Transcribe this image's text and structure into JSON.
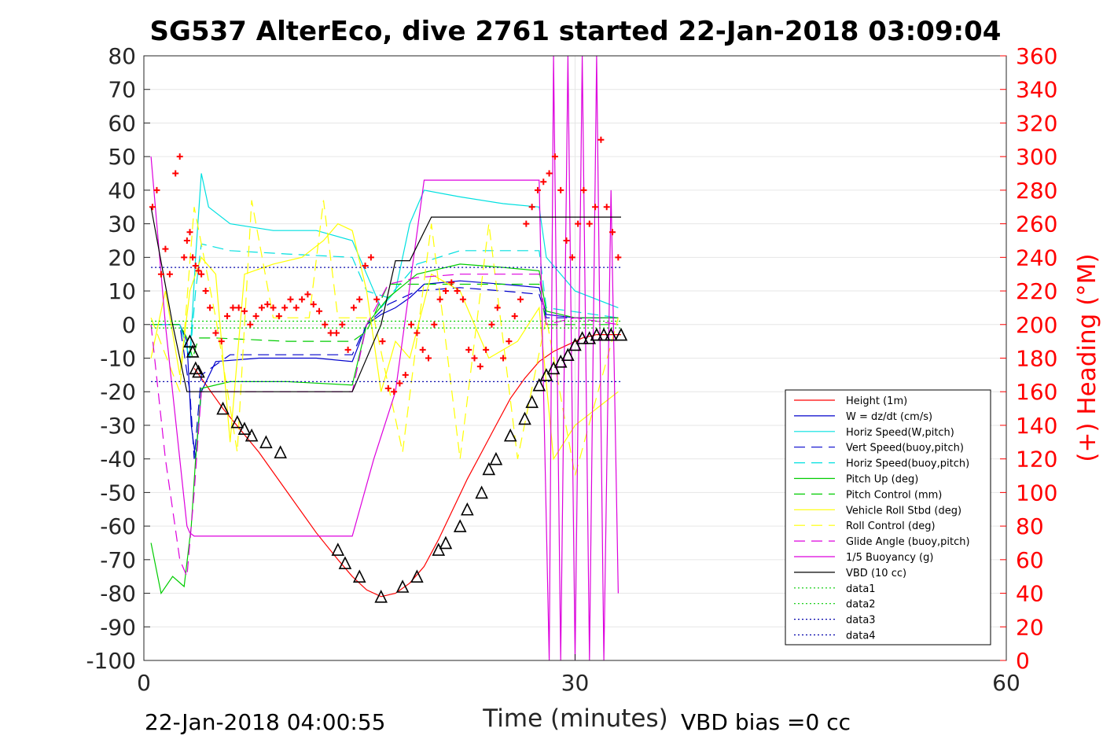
{
  "chart_data": {
    "type": "line",
    "title": "SG537 AlterEco, dive 2761 started 22-Jan-2018 03:09:04",
    "xlabel": "Time (minutes)",
    "ylabel": "",
    "y2label": "(+) Heading (°M)",
    "xlim": [
      0,
      60
    ],
    "ylim": [
      -100,
      80
    ],
    "y2lim": [
      0,
      360
    ],
    "xticks": [
      "0",
      "30",
      "60"
    ],
    "yticks": [
      "80",
      "70",
      "60",
      "50",
      "40",
      "30",
      "20",
      "10",
      "0",
      "-10",
      "-20",
      "-30",
      "-40",
      "-50",
      "-60",
      "-70",
      "-80",
      "-90",
      "-100"
    ],
    "y2ticks": [
      "360",
      "340",
      "320",
      "300",
      "280",
      "260",
      "240",
      "220",
      "200",
      "180",
      "160",
      "140",
      "120",
      "100",
      "80",
      "60",
      "40",
      "20",
      "0"
    ],
    "grid": true,
    "legend_position": "bottom-right",
    "footer_left": "22-Jan-2018 04:00:55",
    "footer_right": "VBD bias =0 cc",
    "series": [
      {
        "name": "Height (1m)",
        "color": "#ff0000",
        "style": "solid",
        "x": [
          3.5,
          5.5,
          8,
          10,
          12,
          13.5,
          14.5,
          15.5,
          16.5,
          17.5,
          18.5,
          19.5,
          20.5,
          21.5,
          22.5,
          23.5,
          24.5,
          25.5,
          26.5,
          27.5,
          28.5,
          29.5,
          30.5,
          31.5,
          32.5,
          33.2
        ],
        "y": [
          -13,
          -25,
          -38,
          -50,
          -62,
          -70,
          -75,
          -79,
          -81,
          -80,
          -77,
          -72,
          -64,
          -55,
          -46,
          -38,
          -30,
          -22,
          -16,
          -11,
          -8,
          -6,
          -4,
          -3,
          -3,
          -3
        ]
      },
      {
        "name": "W = dz/dt (cm/s)",
        "color": "#0000cc",
        "style": "solid",
        "x": [
          0.5,
          2.5,
          3.0,
          3.3,
          3.6,
          4.0,
          5,
          8,
          12,
          14.5,
          15.5,
          16.5,
          17.5,
          18.5,
          19.5,
          22,
          25,
          27.5,
          28,
          30,
          33
        ],
        "y": [
          0,
          0,
          -5,
          -30,
          -40,
          -20,
          -11,
          -10,
          -10,
          -11,
          0,
          3,
          5,
          8,
          12,
          13,
          12,
          11,
          3,
          2,
          2
        ]
      },
      {
        "name": "Horiz Speed(W,pitch)",
        "color": "#00e0e0",
        "style": "solid",
        "x": [
          0.5,
          2.5,
          3.2,
          3.6,
          4.0,
          4.5,
          6,
          9,
          12,
          14.5,
          15.5,
          16.5,
          17.5,
          18.5,
          19.5,
          22,
          25,
          27.5,
          28,
          30,
          33
        ],
        "y": [
          0,
          0,
          -10,
          20,
          45,
          35,
          30,
          28,
          28,
          25,
          15,
          5,
          10,
          30,
          40,
          38,
          36,
          35,
          20,
          10,
          5
        ]
      },
      {
        "name": "Vert Speed(buoy,pitch)",
        "color": "#0000cc",
        "style": "dash",
        "x": [
          0.5,
          2.5,
          3.2,
          3.5,
          4.0,
          6,
          10,
          14.5,
          15.5,
          17,
          19,
          22,
          25,
          27.5,
          28,
          33
        ],
        "y": [
          0,
          0,
          -20,
          -40,
          -15,
          -9,
          -9,
          -9,
          0,
          6,
          10,
          11,
          10,
          9,
          2,
          2
        ]
      },
      {
        "name": "Horiz Speed(buoy,pitch)",
        "color": "#00e0e0",
        "style": "dash",
        "x": [
          0.5,
          2.5,
          3.2,
          3.6,
          4.0,
          6,
          10,
          14.5,
          15.5,
          17,
          19,
          22,
          25,
          27.5,
          28,
          33
        ],
        "y": [
          0,
          0,
          -10,
          10,
          24,
          22,
          21,
          20,
          10,
          8,
          18,
          22,
          22,
          22,
          5,
          2
        ]
      },
      {
        "name": "Pitch Up (deg)",
        "color": "#00cc00",
        "style": "solid",
        "x": [
          0.5,
          1.2,
          2.0,
          2.8,
          3.3,
          3.6,
          4.0,
          6,
          10,
          14.5,
          15.5,
          17,
          19,
          22,
          25,
          27.5,
          28,
          30,
          33
        ],
        "y": [
          -65,
          -80,
          -75,
          -78,
          -60,
          -40,
          -19,
          -17,
          -17,
          -18,
          0,
          8,
          15,
          18,
          17,
          16,
          4,
          2,
          2
        ]
      },
      {
        "name": "Pitch Control (mm)",
        "color": "#00cc00",
        "style": "dash",
        "x": [
          0.5,
          2.5,
          3.0,
          3.4,
          3.8,
          5,
          10,
          14.5,
          15.5,
          17,
          19,
          22,
          25,
          27.5,
          28,
          33
        ],
        "y": [
          0,
          0,
          -4,
          -10,
          -4,
          -4,
          -5,
          -5,
          -2,
          12,
          12,
          12,
          12,
          12,
          0,
          0
        ]
      },
      {
        "name": "Vehicle Roll Stbd (deg)",
        "color": "#ffff00",
        "style": "solid",
        "x": [
          0.5,
          1.5,
          2.5,
          3.2,
          4.0,
          5.0,
          6.0,
          6.5,
          7.0,
          9.0,
          11.0,
          12.5,
          13.5,
          14.5,
          15.5,
          16.5,
          17.5,
          18.5,
          20.0,
          22.0,
          24.0,
          26.0,
          27.5,
          28.5,
          30.0,
          33.0
        ],
        "y": [
          -10,
          10,
          -15,
          10,
          20,
          15,
          -35,
          -10,
          15,
          18,
          20,
          25,
          30,
          28,
          10,
          -20,
          -5,
          -10,
          15,
          10,
          -10,
          -5,
          5,
          -40,
          -30,
          -20
        ]
      },
      {
        "name": "Roll Control (deg)",
        "color": "#ffff00",
        "style": "dash",
        "x": [
          0.5,
          2.5,
          3.5,
          5,
          6.5,
          7.5,
          9,
          11.5,
          12.5,
          13.5,
          14.5,
          16,
          18,
          20,
          22,
          24,
          26,
          28,
          30,
          33
        ],
        "y": [
          2,
          -20,
          35,
          2,
          -38,
          37,
          2,
          2,
          37,
          2,
          2,
          2,
          -38,
          30,
          -40,
          30,
          -40,
          2,
          -45,
          2
        ]
      },
      {
        "name": "Glide Angle (buoy,pitch)",
        "color": "#dd00dd",
        "style": "dash",
        "x": [
          0.5,
          1.5,
          2.5,
          3.0,
          3.5,
          4.0,
          6,
          10,
          14.5,
          15.5,
          17,
          19,
          22,
          25,
          27.5,
          28,
          30,
          33
        ],
        "y": [
          0,
          -40,
          -70,
          -75,
          -50,
          -20,
          -20,
          -20,
          -20,
          0,
          12,
          14,
          15,
          15,
          15,
          0,
          2,
          0
        ]
      },
      {
        "name": "1/5 Buoyancy (g)",
        "color": "#dd00dd",
        "style": "solid",
        "x": [
          0.5,
          1.5,
          3.0,
          3.2,
          3.5,
          5,
          10,
          14.5,
          16,
          17.5,
          19.5,
          22,
          25,
          27.5,
          28.2,
          28.5,
          29,
          29.5,
          30,
          30.5,
          31,
          31.5,
          32,
          32.5,
          33
        ],
        "y": [
          50,
          0,
          -60,
          -62,
          -63,
          -63,
          -63,
          -63,
          -40,
          -20,
          43,
          43,
          43,
          43,
          -100,
          80,
          -100,
          80,
          -100,
          80,
          -100,
          80,
          -100,
          40,
          -80
        ]
      },
      {
        "name": "VBD (10 cc)",
        "color": "#000000",
        "style": "solid",
        "x": [
          0.5,
          2.0,
          3.0,
          4.0,
          6,
          10,
          14.5,
          16.5,
          17.5,
          18.5,
          20.0,
          22,
          25,
          27.5,
          33.2
        ],
        "y": [
          35,
          0,
          -20,
          -20,
          -20,
          -20,
          -20,
          0,
          19,
          19,
          32,
          32,
          32,
          32,
          32
        ]
      },
      {
        "name": "data1",
        "color": "#00cc00",
        "style": "dot",
        "x": [
          0.5,
          33.2
        ],
        "y": [
          1,
          1
        ]
      },
      {
        "name": "data2",
        "color": "#00cc00",
        "style": "dot",
        "x": [
          0.5,
          33.2
        ],
        "y": [
          -1,
          -1
        ]
      },
      {
        "name": "data3",
        "color": "#0000aa",
        "style": "dot",
        "x": [
          0.5,
          33.2
        ],
        "y": [
          17,
          17
        ]
      },
      {
        "name": "data4",
        "color": "#0000aa",
        "style": "dot",
        "x": [
          0.5,
          33.2
        ],
        "y": [
          -17,
          -17
        ]
      }
    ],
    "heading_points": {
      "color": "#ff0000",
      "axis": "right",
      "x": [
        0.6,
        0.9,
        1.2,
        1.5,
        1.8,
        2.2,
        2.5,
        2.8,
        3.0,
        3.2,
        3.4,
        3.6,
        3.8,
        4.0,
        4.3,
        4.6,
        5.0,
        5.4,
        5.8,
        6.2,
        6.6,
        7.0,
        7.4,
        7.8,
        8.2,
        8.6,
        9.0,
        9.4,
        9.8,
        10.2,
        10.6,
        11.0,
        11.4,
        11.8,
        12.2,
        12.6,
        13.0,
        13.4,
        13.8,
        14.2,
        14.6,
        15.0,
        15.4,
        15.8,
        16.2,
        16.6,
        17.0,
        17.4,
        17.8,
        18.2,
        18.6,
        19.0,
        19.4,
        19.8,
        20.2,
        20.6,
        21.0,
        21.4,
        21.8,
        22.2,
        22.6,
        23.0,
        23.4,
        23.8,
        24.2,
        24.6,
        25.0,
        25.4,
        25.8,
        26.2,
        26.6,
        27.0,
        27.4,
        27.8,
        28.2,
        28.6,
        29.0,
        29.4,
        29.8,
        30.2,
        30.6,
        31.0,
        31.4,
        31.8,
        32.2,
        32.6,
        33.0
      ],
      "y": [
        270,
        280,
        230,
        245,
        230,
        290,
        300,
        240,
        250,
        255,
        240,
        235,
        232,
        230,
        220,
        210,
        195,
        190,
        205,
        210,
        210,
        208,
        200,
        205,
        210,
        212,
        210,
        205,
        210,
        215,
        210,
        215,
        218,
        212,
        208,
        200,
        195,
        195,
        200,
        185,
        210,
        215,
        235,
        240,
        215,
        190,
        162,
        160,
        165,
        170,
        200,
        195,
        185,
        180,
        200,
        215,
        220,
        225,
        220,
        215,
        185,
        180,
        175,
        185,
        200,
        210,
        180,
        190,
        205,
        215,
        260,
        270,
        280,
        285,
        290,
        300,
        280,
        250,
        240,
        260,
        280,
        260,
        270,
        310,
        270,
        255,
        240
      ]
    },
    "marker_points": {
      "color": "#000000",
      "x": [
        3.2,
        3.4,
        3.6,
        3.8,
        5.5,
        6.5,
        7.0,
        7.5,
        8.5,
        9.5,
        13.5,
        14.0,
        15.0,
        16.5,
        18.0,
        19.0,
        20.5,
        21.0,
        22.0,
        22.5,
        23.5,
        24.0,
        24.5,
        25.5,
        26.5,
        27.0,
        27.5,
        28.0,
        28.5,
        29.0,
        29.5,
        30.0,
        30.5,
        31.0,
        31.5,
        32.0,
        32.5,
        33.2
      ],
      "y": [
        -5,
        -8,
        -13,
        -14,
        -25,
        -29,
        -31,
        -33,
        -35,
        -38,
        -67,
        -71,
        -75,
        -81,
        -78,
        -75,
        -67,
        -65,
        -60,
        -55,
        -50,
        -43,
        -40,
        -33,
        -28,
        -23,
        -18,
        -15,
        -13,
        -11,
        -9,
        -6,
        -4,
        -4,
        -3,
        -3,
        -3,
        -3
      ]
    }
  }
}
